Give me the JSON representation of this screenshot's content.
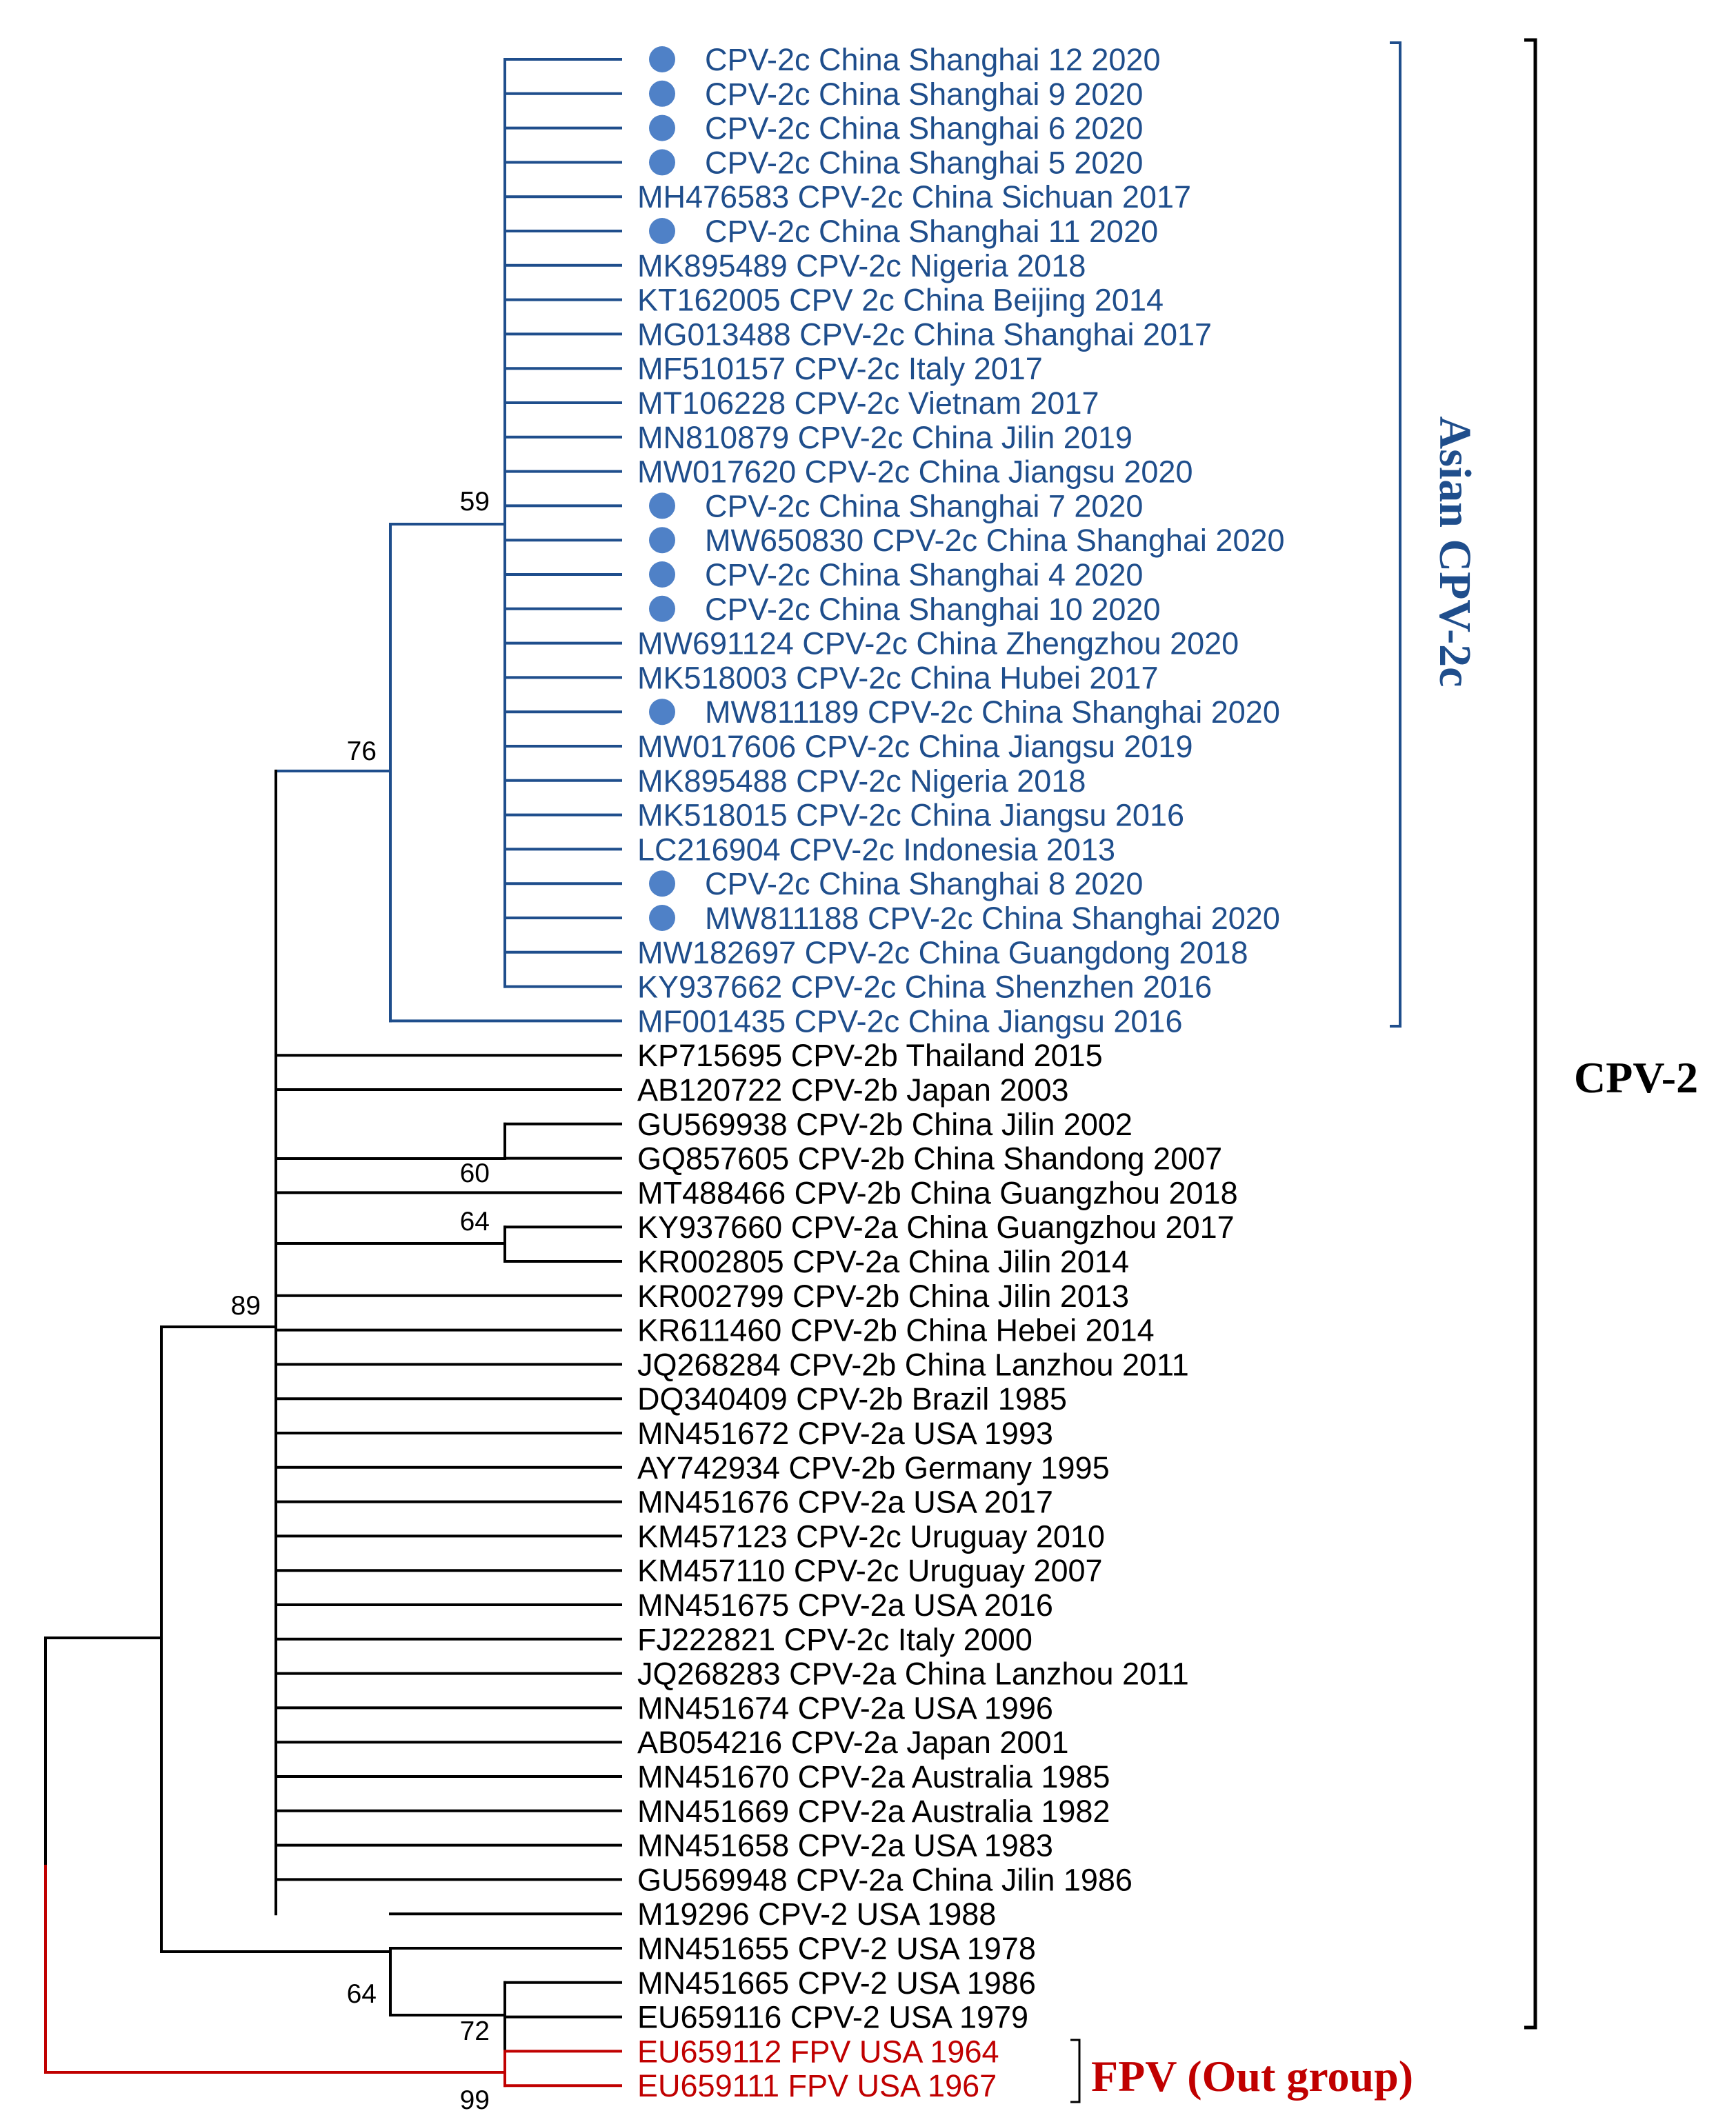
{
  "colors": {
    "asian_cpv2c": "#1f4e8c",
    "sample_marker": "#4f81c7",
    "cpv2": "#000000",
    "fpv": "#c00000"
  },
  "groups": {
    "asian_cpv2c_label": "Asian CPV-2c",
    "cpv2_label": "CPV-2",
    "fpv_label": "FPV (Out group)"
  },
  "bootstrap": {
    "asian_inner": "59",
    "asian_clade": "76",
    "gu_gq": "60",
    "ky_kr": "64",
    "cpv2_main": "89",
    "cpv2_basal": "64",
    "cpv2_usa": "72",
    "root": "99"
  },
  "taxa": [
    {
      "label": "CPV-2c China Shanghai 12 2020",
      "group": "asian",
      "marker": true
    },
    {
      "label": "CPV-2c China Shanghai 9 2020",
      "group": "asian",
      "marker": true
    },
    {
      "label": "CPV-2c China Shanghai 6 2020",
      "group": "asian",
      "marker": true
    },
    {
      "label": "CPV-2c China Shanghai 5 2020",
      "group": "asian",
      "marker": true
    },
    {
      "label": "MH476583 CPV-2c China Sichuan 2017",
      "group": "asian",
      "marker": false
    },
    {
      "label": "CPV-2c China Shanghai 11 2020",
      "group": "asian",
      "marker": true
    },
    {
      "label": "MK895489 CPV-2c Nigeria 2018",
      "group": "asian",
      "marker": false
    },
    {
      "label": "KT162005 CPV 2c China Beijing 2014",
      "group": "asian",
      "marker": false
    },
    {
      "label": "MG013488 CPV-2c China Shanghai 2017",
      "group": "asian",
      "marker": false
    },
    {
      "label": "MF510157 CPV-2c Italy 2017",
      "group": "asian",
      "marker": false
    },
    {
      "label": "MT106228 CPV-2c Vietnam 2017",
      "group": "asian",
      "marker": false
    },
    {
      "label": "MN810879 CPV-2c China Jilin 2019",
      "group": "asian",
      "marker": false
    },
    {
      "label": "MW017620 CPV-2c China Jiangsu 2020",
      "group": "asian",
      "marker": false
    },
    {
      "label": "CPV-2c China Shanghai 7 2020",
      "group": "asian",
      "marker": true
    },
    {
      "label": "MW650830 CPV-2c China Shanghai 2020",
      "group": "asian",
      "marker": true
    },
    {
      "label": "CPV-2c China Shanghai 4 2020",
      "group": "asian",
      "marker": true
    },
    {
      "label": "CPV-2c China Shanghai 10 2020",
      "group": "asian",
      "marker": true
    },
    {
      "label": "MW691124 CPV-2c China Zhengzhou 2020",
      "group": "asian",
      "marker": false
    },
    {
      "label": "MK518003 CPV-2c China Hubei 2017",
      "group": "asian",
      "marker": false
    },
    {
      "label": "MW811189 CPV-2c China Shanghai 2020",
      "group": "asian",
      "marker": true
    },
    {
      "label": "MW017606 CPV-2c China Jiangsu 2019",
      "group": "asian",
      "marker": false
    },
    {
      "label": "MK895488 CPV-2c Nigeria 2018",
      "group": "asian",
      "marker": false
    },
    {
      "label": "MK518015 CPV-2c China Jiangsu 2016",
      "group": "asian",
      "marker": false
    },
    {
      "label": "LC216904 CPV-2c Indonesia 2013",
      "group": "asian",
      "marker": false
    },
    {
      "label": "CPV-2c China Shanghai 8 2020",
      "group": "asian",
      "marker": true
    },
    {
      "label": "MW811188 CPV-2c China Shanghai 2020",
      "group": "asian",
      "marker": true
    },
    {
      "label": "MW182697 CPV-2c China Guangdong 2018",
      "group": "asian",
      "marker": false
    },
    {
      "label": "KY937662 CPV-2c China Shenzhen 2016",
      "group": "asian",
      "marker": false
    },
    {
      "label": "MF001435 CPV-2c China Jiangsu 2016",
      "group": "asian",
      "marker": false
    },
    {
      "label": "KP715695 CPV-2b Thailand 2015",
      "group": "cpv2",
      "marker": false
    },
    {
      "label": "AB120722 CPV-2b Japan 2003",
      "group": "cpv2",
      "marker": false
    },
    {
      "label": "GU569938 CPV-2b China Jilin 2002",
      "group": "cpv2",
      "marker": false
    },
    {
      "label": "GQ857605 CPV-2b China Shandong 2007",
      "group": "cpv2",
      "marker": false
    },
    {
      "label": "MT488466 CPV-2b China Guangzhou 2018",
      "group": "cpv2",
      "marker": false
    },
    {
      "label": "KY937660 CPV-2a China Guangzhou 2017",
      "group": "cpv2",
      "marker": false
    },
    {
      "label": "KR002805 CPV-2a China Jilin 2014",
      "group": "cpv2",
      "marker": false
    },
    {
      "label": "KR002799 CPV-2b China Jilin 2013",
      "group": "cpv2",
      "marker": false
    },
    {
      "label": "KR611460 CPV-2b China Hebei 2014",
      "group": "cpv2",
      "marker": false
    },
    {
      "label": "JQ268284 CPV-2b China Lanzhou 2011",
      "group": "cpv2",
      "marker": false
    },
    {
      "label": "DQ340409 CPV-2b Brazil 1985",
      "group": "cpv2",
      "marker": false
    },
    {
      "label": "MN451672 CPV-2a USA 1993",
      "group": "cpv2",
      "marker": false
    },
    {
      "label": "AY742934 CPV-2b Germany 1995",
      "group": "cpv2",
      "marker": false
    },
    {
      "label": "MN451676 CPV-2a USA 2017",
      "group": "cpv2",
      "marker": false
    },
    {
      "label": "KM457123 CPV-2c Uruguay 2010",
      "group": "cpv2",
      "marker": false
    },
    {
      "label": "KM457110 CPV-2c Uruguay 2007",
      "group": "cpv2",
      "marker": false
    },
    {
      "label": "MN451675 CPV-2a USA 2016",
      "group": "cpv2",
      "marker": false
    },
    {
      "label": "FJ222821 CPV-2c Italy 2000",
      "group": "cpv2",
      "marker": false
    },
    {
      "label": "JQ268283 CPV-2a China Lanzhou 2011",
      "group": "cpv2",
      "marker": false
    },
    {
      "label": "MN451674 CPV-2a USA 1996",
      "group": "cpv2",
      "marker": false
    },
    {
      "label": "AB054216 CPV-2a Japan 2001",
      "group": "cpv2",
      "marker": false
    },
    {
      "label": "MN451670 CPV-2a Australia 1985",
      "group": "cpv2",
      "marker": false
    },
    {
      "label": "MN451669 CPV-2a Australia 1982",
      "group": "cpv2",
      "marker": false
    },
    {
      "label": "MN451658 CPV-2a USA 1983",
      "group": "cpv2",
      "marker": false
    },
    {
      "label": "GU569948 CPV-2a China Jilin 1986",
      "group": "cpv2",
      "marker": false
    },
    {
      "label": "M19296 CPV-2 USA 1988",
      "group": "cpv2",
      "marker": false
    },
    {
      "label": "MN451655 CPV-2 USA 1978",
      "group": "cpv2",
      "marker": false
    },
    {
      "label": "MN451665 CPV-2 USA 1986",
      "group": "cpv2",
      "marker": false
    },
    {
      "label": "EU659116 CPV-2 USA 1979",
      "group": "cpv2",
      "marker": false
    },
    {
      "label": "EU659112 FPV USA 1964",
      "group": "fpv",
      "marker": false
    },
    {
      "label": "EU659111 FPV USA 1967",
      "group": "fpv",
      "marker": false
    }
  ]
}
